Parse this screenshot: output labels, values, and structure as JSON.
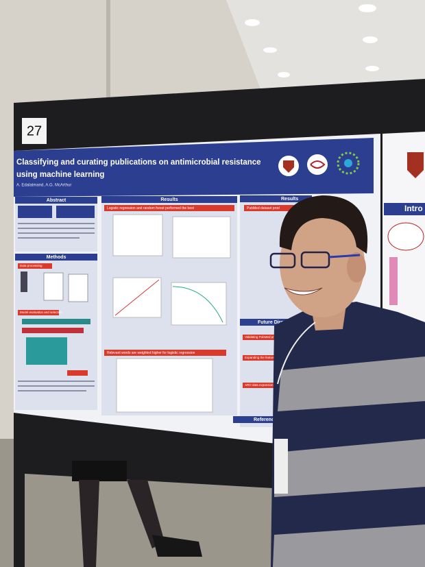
{
  "board_number": "27",
  "poster": {
    "title_lines": [
      "Classifying and curating publications on antimicrobial resistance",
      "using machine learning"
    ],
    "authors": "A. Edalatmand, A.G. McArthur",
    "abstract": "Abstract",
    "methods": "Methods",
    "data_processing": "Data processing",
    "model_evaluation": "Model evaluation and selection",
    "results": "Results",
    "results_heading_1": "Logistic regression and random forest performed the best",
    "results_heading_2": "Relevant words are weighted higher for logistic regression",
    "results_right": "PubMed dataset prod",
    "future_directions": "Future Directions",
    "validating": "Validating PubMed predictions",
    "expanding": "Expanding the feature space",
    "aro": "ARO data expansion",
    "references": "References"
  },
  "side_poster": {
    "intro": "Intro"
  }
}
